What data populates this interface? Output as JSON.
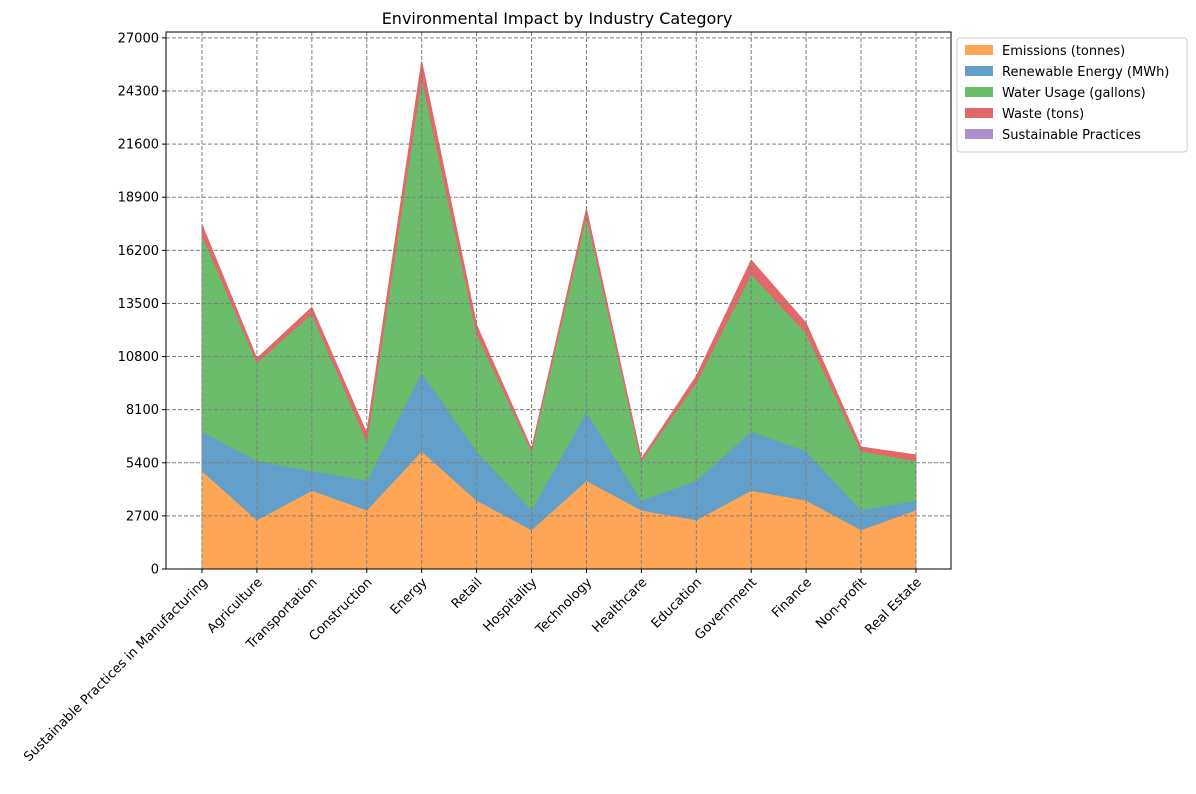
{
  "chart_data": {
    "type": "area",
    "stacked": true,
    "title": "Environmental Impact by Industry Category",
    "xlabel": "",
    "ylabel": "",
    "categories": [
      "Sustainable Practices in Manufacturing",
      "Agriculture",
      "Transportation",
      "Construction",
      "Energy",
      "Retail",
      "Hospitality",
      "Technology",
      "Healthcare",
      "Education",
      "Government",
      "Finance",
      "Non-profit",
      "Real Estate"
    ],
    "series": [
      {
        "name": "Emissions (tonnes)",
        "color": "#ffa556",
        "values": [
          5000,
          2500,
          4000,
          3000,
          6000,
          3500,
          2000,
          4500,
          3000,
          2500,
          4000,
          3500,
          2000,
          3000
        ]
      },
      {
        "name": "Renewable Energy (MWh)",
        "color": "#62a0cb",
        "values": [
          2000,
          3000,
          1000,
          1500,
          4000,
          2500,
          1000,
          3500,
          500,
          2000,
          3000,
          2500,
          1000,
          500
        ]
      },
      {
        "name": "Water Usage (gallons)",
        "color": "#6bbc6b",
        "values": [
          10000,
          5000,
          8000,
          2000,
          15000,
          6000,
          3000,
          10000,
          2000,
          5000,
          8000,
          6000,
          3000,
          2000
        ]
      },
      {
        "name": "Waste (tons)",
        "color": "#e3686a",
        "values": [
          500,
          200,
          300,
          400,
          800,
          400,
          100,
          300,
          100,
          300,
          700,
          500,
          200,
          300
        ]
      },
      {
        "name": "Sustainable Practices",
        "color": "#b08fd0",
        "values": [
          0,
          0,
          0,
          0,
          0,
          0,
          0,
          0,
          0,
          0,
          0,
          0,
          0,
          0
        ]
      }
    ],
    "ylim": [
      0,
      27300
    ],
    "yticks": [
      "0",
      "2700",
      "5400",
      "8100",
      "10800",
      "13500",
      "16200",
      "18900",
      "21600",
      "24300",
      "27000"
    ],
    "grid": true,
    "legend": "outside-upper-right"
  }
}
